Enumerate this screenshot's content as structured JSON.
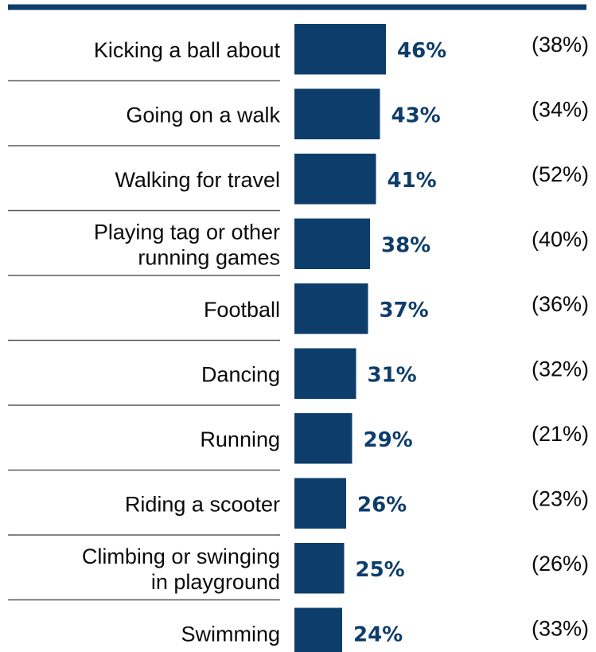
{
  "colors": {
    "bar": "#0d3d6b",
    "value_text": "#0d3d6b",
    "header_rule": "#0d3d6b",
    "row_divider": "#5a5a5a",
    "label_text": "#0a0a0a"
  },
  "chart_data": {
    "type": "bar",
    "orientation": "horizontal",
    "title": "",
    "xlabel": "",
    "ylabel": "",
    "grid": false,
    "legend": "none",
    "xlim": [
      0,
      50
    ],
    "categories": [
      "Kicking a ball about",
      "Going on a walk",
      "Walking for travel",
      "Playing tag or other running games",
      "Football",
      "Dancing",
      "Running",
      "Riding a scooter",
      "Climbing or swinging in playground",
      "Swimming"
    ],
    "category_lines": [
      [
        "Kicking a ball about"
      ],
      [
        "Going on a walk"
      ],
      [
        "Walking for travel"
      ],
      [
        "Playing tag or other",
        "running games"
      ],
      [
        "Football"
      ],
      [
        "Dancing"
      ],
      [
        "Running"
      ],
      [
        "Riding a scooter"
      ],
      [
        "Climbing or swinging",
        "in playground"
      ],
      [
        "Swimming"
      ]
    ],
    "values": [
      46,
      43,
      41,
      38,
      37,
      31,
      29,
      26,
      25,
      24
    ],
    "value_labels": [
      "46%",
      "43%",
      "41%",
      "38%",
      "37%",
      "31%",
      "29%",
      "26%",
      "25%",
      "24%"
    ],
    "comparison_values": [
      38,
      34,
      52,
      40,
      36,
      32,
      21,
      23,
      26,
      33
    ],
    "comparison_labels": [
      "(38%)",
      "(34%)",
      "(52%)",
      "(40%)",
      "(36%)",
      "(32%)",
      "(21%)",
      "(23%)",
      "(26%)",
      "(33%)"
    ]
  }
}
